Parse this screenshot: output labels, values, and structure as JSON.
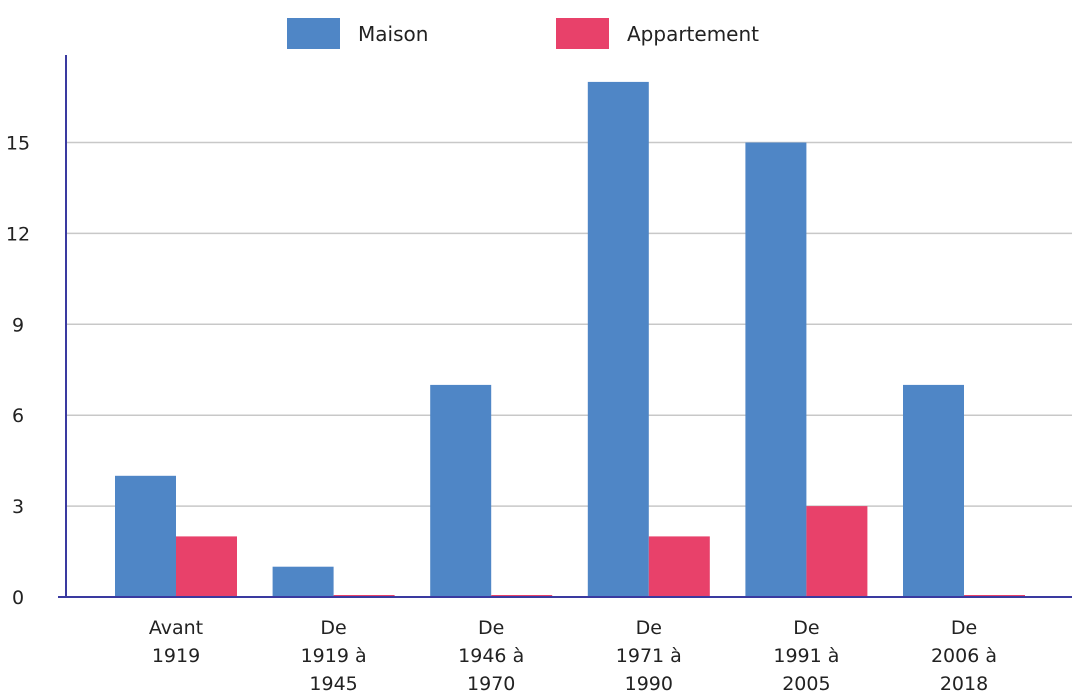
{
  "chart_data": {
    "type": "bar",
    "categories": [
      [
        "Avant",
        "1919"
      ],
      [
        "De",
        "1919 à",
        "1945"
      ],
      [
        "De",
        "1946 à",
        "1970"
      ],
      [
        "De",
        "1971 à",
        "1990"
      ],
      [
        "De",
        "1991 à",
        "2005"
      ],
      [
        "De",
        "2006 à",
        "2018"
      ]
    ],
    "series": [
      {
        "name": "Maison",
        "color": "#4f86c6",
        "values": [
          4,
          1,
          7,
          17,
          15,
          7
        ]
      },
      {
        "name": "Appartement",
        "color": "#e8416a",
        "values": [
          2,
          0,
          0,
          2,
          3,
          0
        ]
      }
    ],
    "yticks": [
      0,
      3,
      6,
      9,
      12,
      15
    ],
    "ylim": [
      0,
      17.7
    ],
    "grid": true,
    "legend_position": "top-center"
  }
}
